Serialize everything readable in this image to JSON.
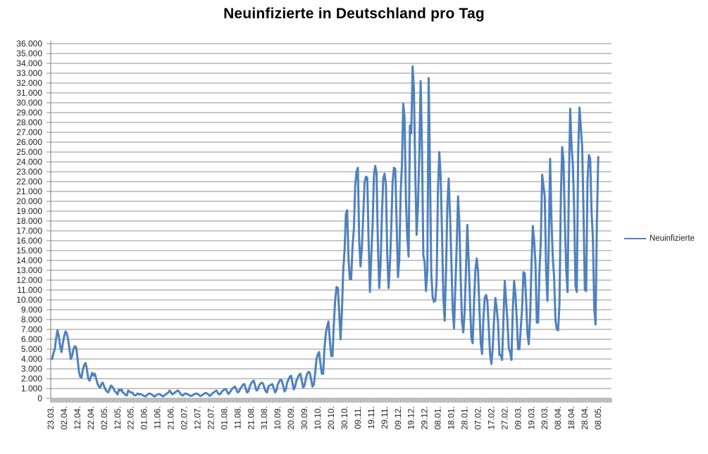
{
  "chart_data": {
    "type": "line",
    "title": "Neuinfizierte in Deutschland pro Tag",
    "legend": {
      "position": "right",
      "entries": [
        "Neuinfizierte"
      ]
    },
    "grid": true,
    "y_axis": {
      "min": 0,
      "max": 36000,
      "step": 1000,
      "tick_labels": [
        "36.000",
        "35.000",
        "34.000",
        "33.000",
        "32.000",
        "31.000",
        "30.000",
        "29.000",
        "28.000",
        "27.000",
        "26.000",
        "25.000",
        "24.000",
        "23.000",
        "22.000",
        "21.000",
        "20.000",
        "19.000",
        "18.000",
        "17.000",
        "16.000",
        "15.000",
        "14.000",
        "13.000",
        "12.000",
        "11.000",
        "10.000",
        "9.000",
        "8.000",
        "7.000",
        "6.000",
        "5.000",
        "4.000",
        "3.000",
        "2.000",
        "1.000",
        "0"
      ]
    },
    "x_axis": {
      "tick_interval_categories": 10,
      "total_categories": 420,
      "tick_labels": [
        "23.03.",
        "02.04.",
        "12.04.",
        "22.04.",
        "02.05.",
        "12.05.",
        "22.05.",
        "01.06.",
        "11.06.",
        "21.06.",
        "02.07.",
        "12.07.",
        "22.07.",
        "01.08.",
        "11.08.",
        "21.08.",
        "31.08.",
        "10.09.",
        "20.09.",
        "30.09.",
        "10.10.",
        "20.10.",
        "30.10.",
        "09.11.",
        "19.11.",
        "29.11.",
        "09.12.",
        "19.12.",
        "29.12.",
        "08.01.",
        "18.01.",
        "28.01.",
        "07.02.",
        "17.02.",
        "27.02.",
        "09.03.",
        "19.03.",
        "29.03.",
        "08.04.",
        "18.04.",
        "28.04.",
        "08.05."
      ]
    },
    "series": [
      {
        "name": "Neuinfizierte",
        "color": "#4F81BD",
        "first_category_label": "23.03.",
        "values": [
          4000,
          4600,
          5000,
          6100,
          6900,
          6300,
          5300,
          4700,
          5600,
          6300,
          6800,
          6600,
          6000,
          5000,
          4000,
          4300,
          5000,
          5300,
          5200,
          4100,
          2800,
          2200,
          2100,
          2900,
          3400,
          3600,
          3000,
          2000,
          1800,
          2200,
          2600,
          2300,
          2500,
          2000,
          1500,
          1200,
          1100,
          1500,
          1600,
          1200,
          900,
          700,
          600,
          900,
          1300,
          1200,
          1000,
          700,
          600,
          400,
          900,
          800,
          900,
          600,
          500,
          350,
          300,
          800,
          700,
          600,
          600,
          400,
          300,
          350,
          500,
          400,
          450,
          400,
          300,
          250,
          200,
          350,
          450,
          500,
          450,
          350,
          250,
          200,
          350,
          400,
          450,
          400,
          300,
          200,
          300,
          400,
          500,
          600,
          800,
          600,
          400,
          500,
          600,
          700,
          800,
          700,
          500,
          350,
          300,
          450,
          500,
          450,
          400,
          300,
          250,
          300,
          400,
          450,
          500,
          450,
          350,
          250,
          300,
          400,
          500,
          550,
          500,
          400,
          250,
          350,
          500,
          600,
          700,
          800,
          600,
          400,
          450,
          650,
          800,
          900,
          950,
          700,
          450,
          600,
          800,
          1000,
          1100,
          1200,
          900,
          600,
          700,
          1000,
          1200,
          1400,
          1450,
          1000,
          600,
          700,
          1200,
          1500,
          1700,
          1800,
          1300,
          800,
          900,
          1300,
          1500,
          1600,
          1500,
          1100,
          700,
          600,
          1200,
          1300,
          1400,
          1450,
          1000,
          600,
          800,
          1400,
          1700,
          1900,
          1800,
          1300,
          700,
          900,
          1600,
          1900,
          2200,
          2300,
          1600,
          900,
          1200,
          1800,
          2100,
          2400,
          2500,
          1800,
          1100,
          1300,
          2000,
          2500,
          2700,
          2600,
          1900,
          1200,
          1400,
          2600,
          4000,
          4500,
          4700,
          3500,
          2500,
          2500,
          5100,
          6600,
          7300,
          7800,
          5900,
          4300,
          4300,
          7600,
          10000,
          11300,
          11200,
          8700,
          6000,
          8700,
          13000,
          15000,
          18700,
          19100,
          14200,
          12100,
          12100,
          15400,
          17200,
          21500,
          23000,
          23400,
          16000,
          13400,
          15300,
          18500,
          21900,
          22500,
          22400,
          16100,
          10800,
          14400,
          17600,
          22600,
          23600,
          22900,
          15700,
          11200,
          13600,
          18600,
          22300,
          22800,
          21700,
          14600,
          11200,
          13600,
          17300,
          22000,
          23400,
          23300,
          17800,
          12300,
          14100,
          20800,
          23700,
          29900,
          28400,
          20200,
          16400,
          14400,
          27700,
          26900,
          33700,
          31300,
          22800,
          16600,
          19500,
          24700,
          32200,
          25500,
          14500,
          13800,
          10900,
          12900,
          32500,
          22900,
          12700,
          10300,
          9800,
          9900,
          11900,
          21200,
          25000,
          22500,
          16900,
          10300,
          7900,
          12800,
          19600,
          22300,
          18700,
          14000,
          9000,
          7100,
          11400,
          15500,
          20500,
          17900,
          12300,
          7800,
          6700,
          8900,
          13200,
          17600,
          14000,
          9700,
          6100,
          5600,
          9700,
          13000,
          14200,
          12900,
          9200,
          5600,
          4500,
          8100,
          10200,
          10500,
          9900,
          7300,
          4500,
          3500,
          5100,
          8000,
          10200,
          9100,
          7700,
          4400,
          4400,
          3900,
          8000,
          11900,
          9900,
          7900,
          5100,
          4700,
          3900,
          9000,
          11900,
          10600,
          8100,
          5000,
          5000,
          7100,
          9100,
          12800,
          12700,
          10000,
          6600,
          5500,
          8200,
          13400,
          17500,
          16000,
          13700,
          7700,
          7700,
          13000,
          16000,
          22700,
          21600,
          20500,
          13000,
          9900,
          15800,
          24300,
          18000,
          14300,
          12200,
          7900,
          7000,
          6900,
          9700,
          20400,
          25500,
          24100,
          17900,
          13200,
          10800,
          21700,
          29400,
          25800,
          23800,
          19200,
          11400,
          10800,
          24900,
          29500,
          27500,
          25500,
          18800,
          11000,
          10900,
          22200,
          24700,
          24300,
          18900,
          16300,
          9200,
          7500,
          18000,
          24500
        ]
      }
    ]
  },
  "colors": {
    "series_blue": "#4F81BD",
    "gridline_gray": "#8f8f8f",
    "axis_gray": "#7a7a7a",
    "text": "#1f1f1f",
    "background": "#ffffff"
  }
}
